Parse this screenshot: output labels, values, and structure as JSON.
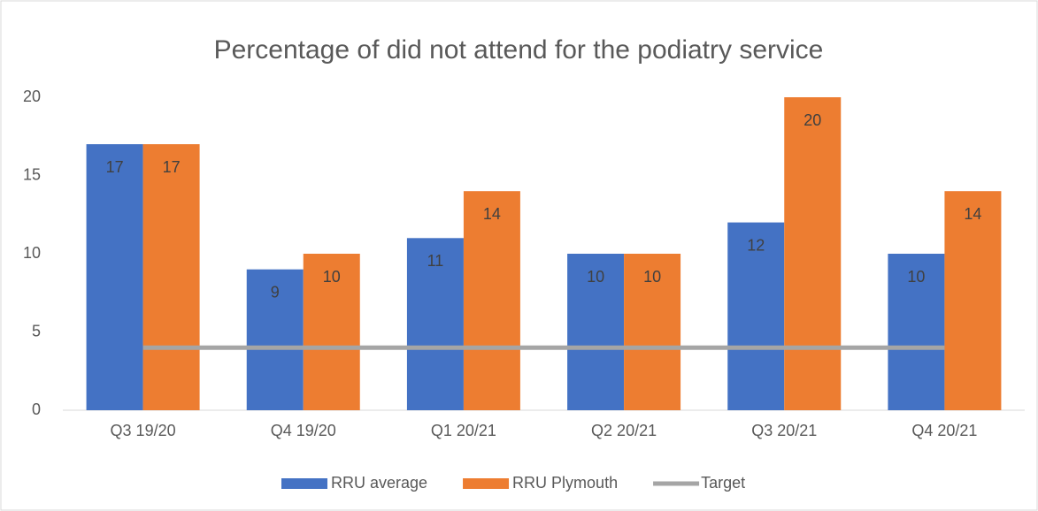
{
  "chart_data": {
    "type": "bar",
    "title": "Percentage of did not attend for the podiatry service",
    "categories": [
      "Q3 19/20",
      "Q4 19/20",
      "Q1 20/21",
      "Q2 20/21",
      "Q3 20/21",
      "Q4 20/21"
    ],
    "series": [
      {
        "name": "RRU average",
        "color": "#4472c4",
        "type": "bar",
        "values": [
          17,
          9,
          11,
          10,
          12,
          10
        ]
      },
      {
        "name": "RRU Plymouth",
        "color": "#ed7d31",
        "type": "bar",
        "values": [
          17,
          10,
          14,
          10,
          20,
          14
        ]
      },
      {
        "name": "Target",
        "color": "#a5a5a5",
        "type": "line",
        "values": [
          4,
          4,
          4,
          4,
          4,
          4
        ]
      }
    ],
    "ylim": [
      0,
      20
    ],
    "yticks": [
      0,
      5,
      10,
      15,
      20
    ],
    "grid": false,
    "legend": "bottom"
  }
}
